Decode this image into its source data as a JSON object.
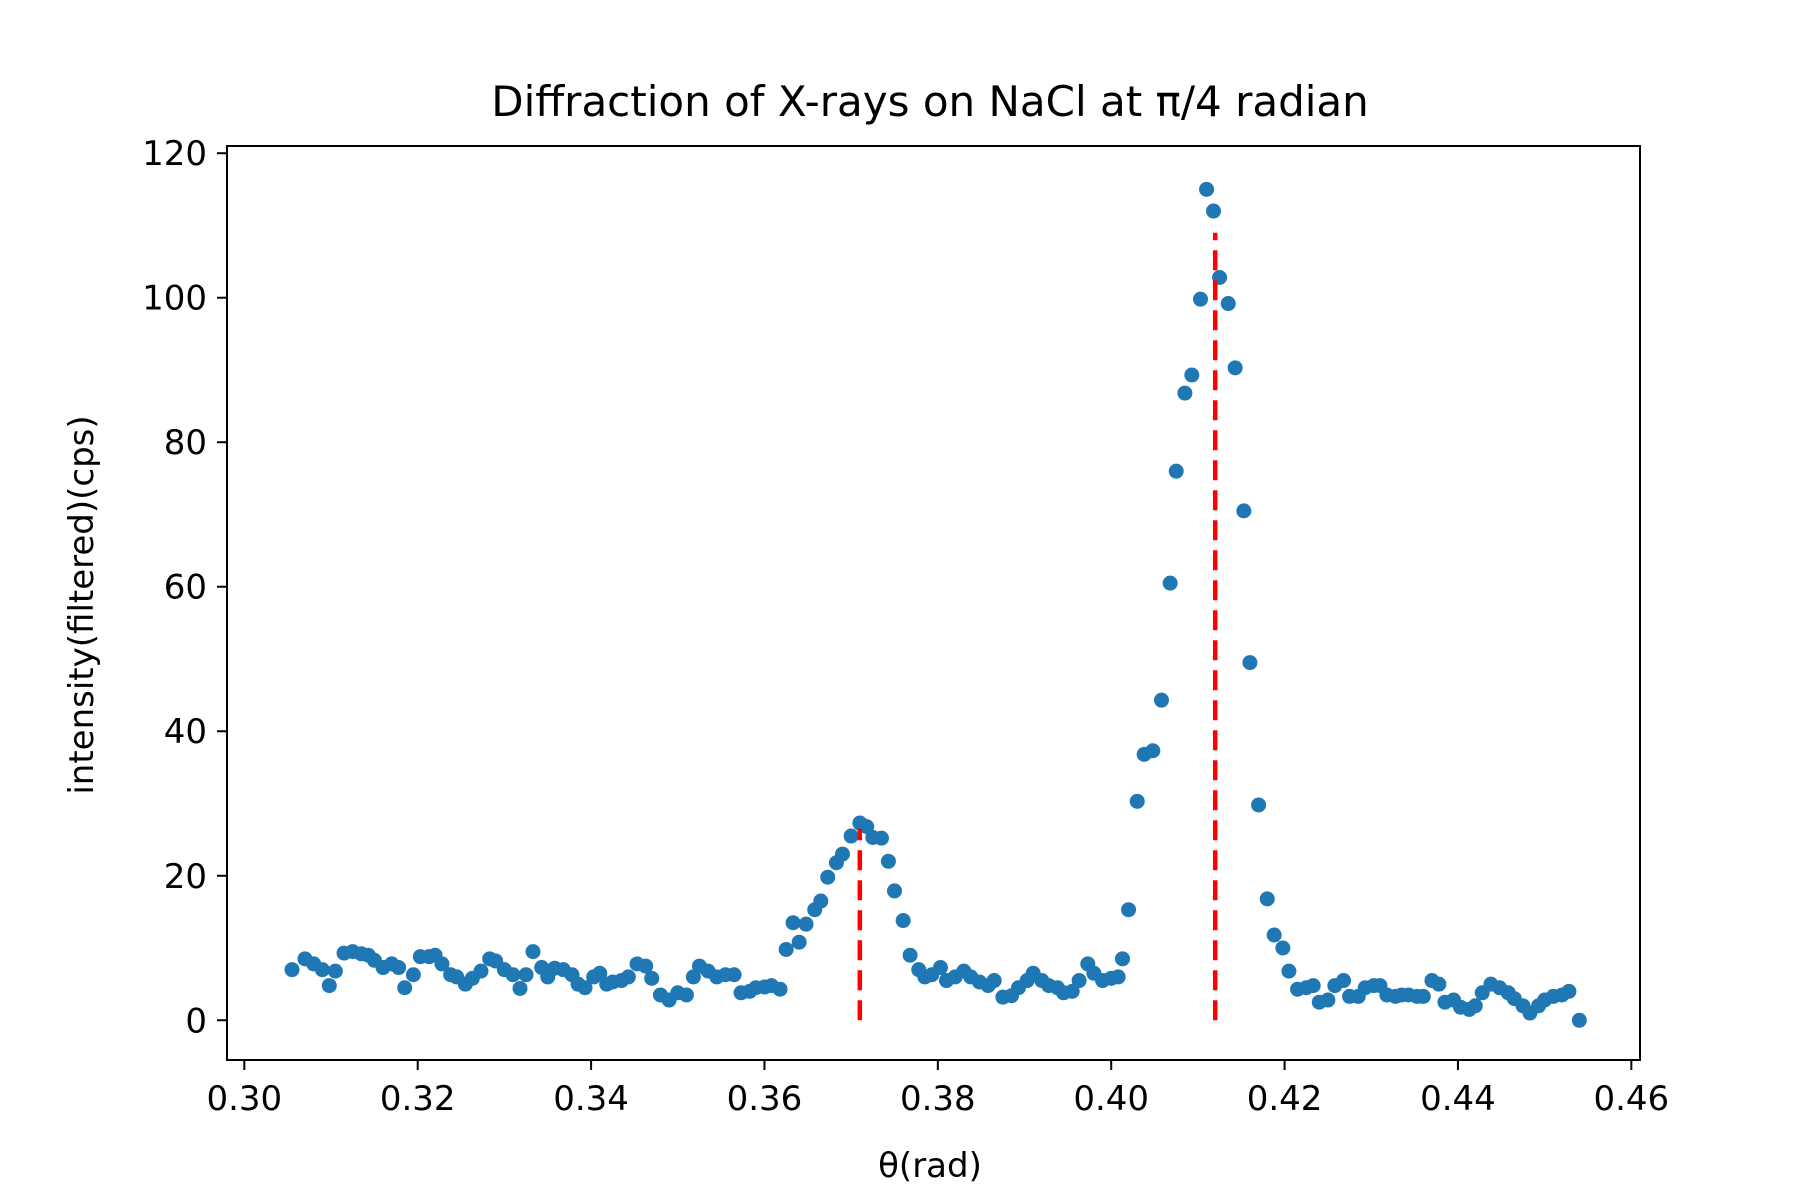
{
  "chart_data": {
    "type": "scatter",
    "title": "Diffraction of X-rays on NaCl at π/4 radian",
    "xlabel": "θ(rad)",
    "ylabel": "intensity(filtered)(cps)",
    "xlim": [
      0.298,
      0.461
    ],
    "ylim": [
      -5.5,
      121
    ],
    "xticks": [
      0.3,
      0.32,
      0.34,
      0.36,
      0.38,
      0.4,
      0.42,
      0.44,
      0.46
    ],
    "xtick_labels": [
      "0.30",
      "0.32",
      "0.34",
      "0.36",
      "0.38",
      "0.40",
      "0.42",
      "0.44",
      "0.46"
    ],
    "yticks": [
      0,
      20,
      40,
      60,
      80,
      100,
      120
    ],
    "ytick_labels": [
      "0",
      "20",
      "40",
      "60",
      "80",
      "100",
      "120"
    ],
    "grid": false,
    "series": [
      {
        "color": "#1f77b4",
        "points": [
          [
            0.3055,
            7.0
          ],
          [
            0.307,
            8.5
          ],
          [
            0.308,
            7.8
          ],
          [
            0.309,
            7.0
          ],
          [
            0.3098,
            4.8
          ],
          [
            0.3105,
            6.8
          ],
          [
            0.3115,
            9.3
          ],
          [
            0.3125,
            9.5
          ],
          [
            0.3135,
            9.2
          ],
          [
            0.3143,
            9.0
          ],
          [
            0.315,
            8.3
          ],
          [
            0.316,
            7.3
          ],
          [
            0.317,
            7.8
          ],
          [
            0.3178,
            7.3
          ],
          [
            0.3185,
            4.5
          ],
          [
            0.3195,
            6.3
          ],
          [
            0.3203,
            8.8
          ],
          [
            0.3213,
            8.8
          ],
          [
            0.322,
            9.0
          ],
          [
            0.3228,
            7.8
          ],
          [
            0.3238,
            6.3
          ],
          [
            0.3245,
            6.0
          ],
          [
            0.3255,
            5.0
          ],
          [
            0.3263,
            5.8
          ],
          [
            0.3273,
            6.8
          ],
          [
            0.3283,
            8.5
          ],
          [
            0.329,
            8.2
          ],
          [
            0.33,
            7.0
          ],
          [
            0.331,
            6.3
          ],
          [
            0.3318,
            4.4
          ],
          [
            0.3325,
            6.3
          ],
          [
            0.3333,
            9.5
          ],
          [
            0.3343,
            7.3
          ],
          [
            0.335,
            6.0
          ],
          [
            0.3358,
            7.2
          ],
          [
            0.3368,
            7.0
          ],
          [
            0.3378,
            6.3
          ],
          [
            0.3385,
            5.0
          ],
          [
            0.3393,
            4.5
          ],
          [
            0.3403,
            6.0
          ],
          [
            0.341,
            6.5
          ],
          [
            0.3418,
            5.0
          ],
          [
            0.3425,
            5.3
          ],
          [
            0.3435,
            5.5
          ],
          [
            0.3443,
            6.0
          ],
          [
            0.3453,
            7.8
          ],
          [
            0.3463,
            7.5
          ],
          [
            0.347,
            5.8
          ],
          [
            0.348,
            3.5
          ],
          [
            0.349,
            2.8
          ],
          [
            0.35,
            3.8
          ],
          [
            0.351,
            3.5
          ],
          [
            0.3518,
            6.0
          ],
          [
            0.3525,
            7.5
          ],
          [
            0.3535,
            6.8
          ],
          [
            0.3545,
            6.0
          ],
          [
            0.3555,
            6.3
          ],
          [
            0.3565,
            6.3
          ],
          [
            0.3573,
            3.8
          ],
          [
            0.3583,
            4.0
          ],
          [
            0.359,
            4.5
          ],
          [
            0.36,
            4.6
          ],
          [
            0.3608,
            4.8
          ],
          [
            0.3618,
            4.3
          ],
          [
            0.3625,
            9.8
          ],
          [
            0.3633,
            13.5
          ],
          [
            0.364,
            10.8
          ],
          [
            0.3648,
            13.3
          ],
          [
            0.3658,
            15.3
          ],
          [
            0.3665,
            16.5
          ],
          [
            0.3673,
            19.8
          ],
          [
            0.3683,
            21.8
          ],
          [
            0.369,
            23.0
          ],
          [
            0.37,
            25.5
          ],
          [
            0.371,
            27.3
          ],
          [
            0.3718,
            26.8
          ],
          [
            0.3725,
            25.3
          ],
          [
            0.3735,
            25.2
          ],
          [
            0.3743,
            22.0
          ],
          [
            0.375,
            17.9
          ],
          [
            0.376,
            13.8
          ],
          [
            0.3768,
            9.0
          ],
          [
            0.3778,
            7.0
          ],
          [
            0.3785,
            6.0
          ],
          [
            0.3793,
            6.3
          ],
          [
            0.3803,
            7.3
          ],
          [
            0.381,
            5.5
          ],
          [
            0.382,
            6.0
          ],
          [
            0.383,
            6.8
          ],
          [
            0.3838,
            6.0
          ],
          [
            0.3848,
            5.3
          ],
          [
            0.3858,
            4.8
          ],
          [
            0.3865,
            5.5
          ],
          [
            0.3875,
            3.2
          ],
          [
            0.3885,
            3.4
          ],
          [
            0.3893,
            4.5
          ],
          [
            0.3903,
            5.5
          ],
          [
            0.391,
            6.5
          ],
          [
            0.392,
            5.5
          ],
          [
            0.3928,
            4.8
          ],
          [
            0.3938,
            4.5
          ],
          [
            0.3945,
            3.8
          ],
          [
            0.3955,
            4.0
          ],
          [
            0.3963,
            5.5
          ],
          [
            0.3973,
            7.8
          ],
          [
            0.398,
            6.5
          ],
          [
            0.399,
            5.5
          ],
          [
            0.4,
            5.8
          ],
          [
            0.4008,
            6.0
          ],
          [
            0.4013,
            8.5
          ],
          [
            0.402,
            15.3
          ],
          [
            0.403,
            30.3
          ],
          [
            0.4038,
            36.8
          ],
          [
            0.4048,
            37.3
          ],
          [
            0.4058,
            44.3
          ],
          [
            0.4068,
            60.5
          ],
          [
            0.4075,
            76.0
          ],
          [
            0.4085,
            86.8
          ],
          [
            0.4093,
            89.3
          ],
          [
            0.4103,
            99.8
          ],
          [
            0.411,
            115.0
          ],
          [
            0.4118,
            112.0
          ],
          [
            0.4125,
            102.8
          ],
          [
            0.4135,
            99.2
          ],
          [
            0.4143,
            90.3
          ],
          [
            0.4153,
            70.5
          ],
          [
            0.416,
            49.5
          ],
          [
            0.417,
            29.8
          ],
          [
            0.418,
            16.8
          ],
          [
            0.4188,
            11.8
          ],
          [
            0.4198,
            10.0
          ],
          [
            0.4205,
            6.8
          ],
          [
            0.4215,
            4.3
          ],
          [
            0.4225,
            4.5
          ],
          [
            0.4233,
            4.8
          ],
          [
            0.424,
            2.5
          ],
          [
            0.425,
            2.8
          ],
          [
            0.4258,
            4.8
          ],
          [
            0.4268,
            5.5
          ],
          [
            0.4275,
            3.3
          ],
          [
            0.4285,
            3.3
          ],
          [
            0.4293,
            4.5
          ],
          [
            0.4303,
            4.8
          ],
          [
            0.431,
            4.8
          ],
          [
            0.4318,
            3.5
          ],
          [
            0.4328,
            3.3
          ],
          [
            0.4335,
            3.5
          ],
          [
            0.4343,
            3.5
          ],
          [
            0.4353,
            3.3
          ],
          [
            0.436,
            3.3
          ],
          [
            0.437,
            5.5
          ],
          [
            0.4378,
            5.0
          ],
          [
            0.4385,
            2.5
          ],
          [
            0.4395,
            2.8
          ],
          [
            0.4403,
            1.8
          ],
          [
            0.4413,
            1.5
          ],
          [
            0.442,
            2.0
          ],
          [
            0.4428,
            3.8
          ],
          [
            0.4438,
            5.0
          ],
          [
            0.4448,
            4.5
          ],
          [
            0.4458,
            3.8
          ],
          [
            0.4465,
            3.0
          ],
          [
            0.4475,
            2.0
          ],
          [
            0.4483,
            1.0
          ],
          [
            0.4493,
            2.0
          ],
          [
            0.45,
            2.8
          ],
          [
            0.451,
            3.3
          ],
          [
            0.452,
            3.5
          ],
          [
            0.4528,
            4.0
          ],
          [
            0.454,
            0.0
          ]
        ]
      }
    ],
    "vlines": [
      {
        "x": 0.371,
        "y0": 0,
        "y1": 26.5,
        "color": "#ff0000",
        "style": "dashed"
      },
      {
        "x": 0.412,
        "y0": 0,
        "y1": 109,
        "color": "#ff0000",
        "style": "dashed"
      }
    ]
  }
}
